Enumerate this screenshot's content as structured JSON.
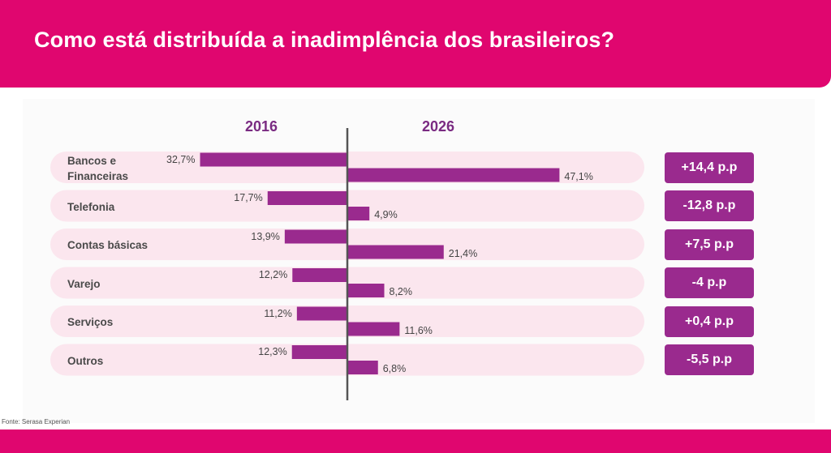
{
  "title": "Como está distribuída a inadimplência dos brasileiros?",
  "source": "Fonte: Serasa Experian",
  "colors": {
    "brand": "#e0066f",
    "bar": "#9a2a8e",
    "row_bg": "#fbe6ee",
    "year_text": "#7a2b82",
    "axis": "#555555"
  },
  "chart_data": {
    "type": "bar",
    "orientation": "horizontal-butterfly",
    "title": "Como está distribuída a inadimplência dos brasileiros?",
    "categories": [
      "Bancos e Financeiras",
      "Telefonia",
      "Contas básicas",
      "Varejo",
      "Serviços",
      "Outros"
    ],
    "category_lines": [
      [
        "Bancos e",
        "Financeiras"
      ],
      [
        "Telefonia"
      ],
      [
        "Contas básicas"
      ],
      [
        "Varejo"
      ],
      [
        "Serviços"
      ],
      [
        "Outros"
      ]
    ],
    "series": [
      {
        "name": "2016",
        "side": "left",
        "values": [
          32.7,
          17.7,
          13.9,
          12.2,
          11.2,
          12.3
        ],
        "labels": [
          "32,7%",
          "17,7%",
          "13,9%",
          "12,2%",
          "11,2%",
          "12,3%"
        ]
      },
      {
        "name": "2026",
        "side": "right",
        "values": [
          47.1,
          4.9,
          21.4,
          8.2,
          11.6,
          6.8
        ],
        "labels": [
          "47,1%",
          "4,9%",
          "21,4%",
          "8,2%",
          "11,6%",
          "6,8%"
        ]
      }
    ],
    "differences": [
      "+14,4 p.p",
      "-12,8 p.p",
      "+7,5 p.p",
      "-4 p.p",
      "+0,4 p.p",
      "-5,5 p.p"
    ],
    "unit": "%"
  }
}
